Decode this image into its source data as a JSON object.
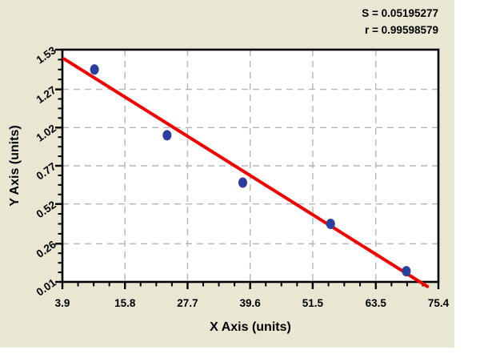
{
  "canvas": {
    "page_background": "#ffffff",
    "panel_background": "#e9e6d2"
  },
  "annotations": {
    "s_label": "S = 0.05195277",
    "r_label": "r = 0.99598579"
  },
  "chart_data": {
    "type": "scatter",
    "title": "",
    "xlabel": "X Axis (units)",
    "ylabel": "Y Axis (units)",
    "xlim": [
      3.9,
      75.4
    ],
    "ylim": [
      0.01,
      1.53
    ],
    "x_ticks": [
      3.9,
      15.8,
      27.7,
      39.6,
      51.5,
      63.5,
      75.4
    ],
    "y_ticks": [
      0.01,
      0.26,
      0.52,
      0.77,
      1.02,
      1.27,
      1.53
    ],
    "minor_ticks_per_interval": 3,
    "grid": "dashed gray lines at interior major ticks, both axes",
    "legend": "none",
    "points": [
      [
        10.0,
        1.4
      ],
      [
        23.8,
        0.97
      ],
      [
        38.2,
        0.66
      ],
      [
        54.9,
        0.39
      ],
      [
        69.3,
        0.08
      ]
    ],
    "fit_line": {
      "x1": 4.2,
      "y1": 1.47,
      "x2": 73.3,
      "y2": -0.02
    },
    "stats": {
      "S": "0.05195277",
      "r": "0.99598579"
    },
    "colors": {
      "point": "#2b3f9e",
      "line": "#f40000",
      "grid": "#b5b5b5",
      "frame": "#000000",
      "plot_background": "#ffffff",
      "text": "#000000"
    }
  }
}
